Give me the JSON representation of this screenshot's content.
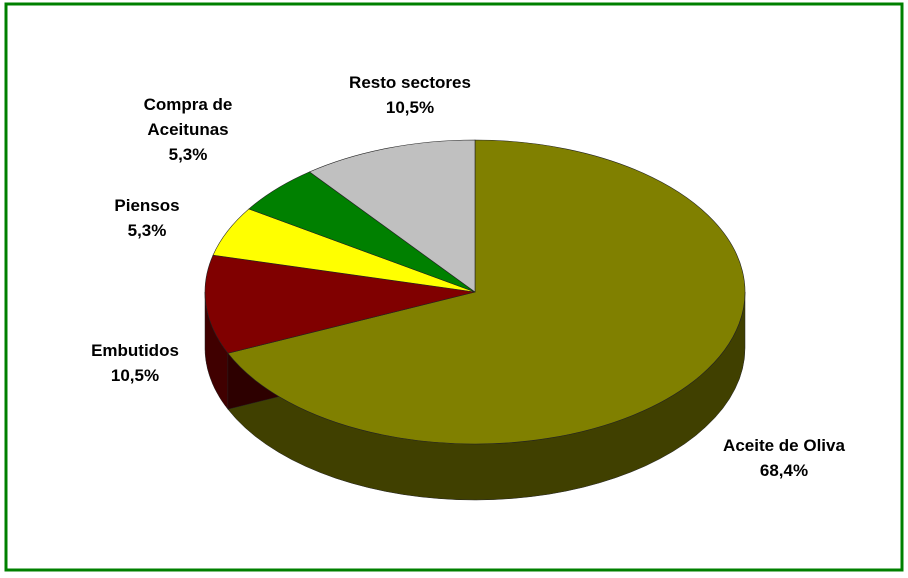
{
  "chart_data": {
    "type": "pie",
    "categories": [
      "Aceite de Oliva",
      "Embutidos",
      "Piensos",
      "Compra de Aceitunas",
      "Resto sectores"
    ],
    "values": [
      68.4,
      10.5,
      5.3,
      5.3,
      10.5
    ],
    "value_labels": [
      "68,4%",
      "10,5%",
      "5,3%",
      "5,3%",
      "10,5%"
    ],
    "colors": [
      "#808000",
      "#800000",
      "#ffff00",
      "#008000",
      "#c0c0c0"
    ]
  }
}
